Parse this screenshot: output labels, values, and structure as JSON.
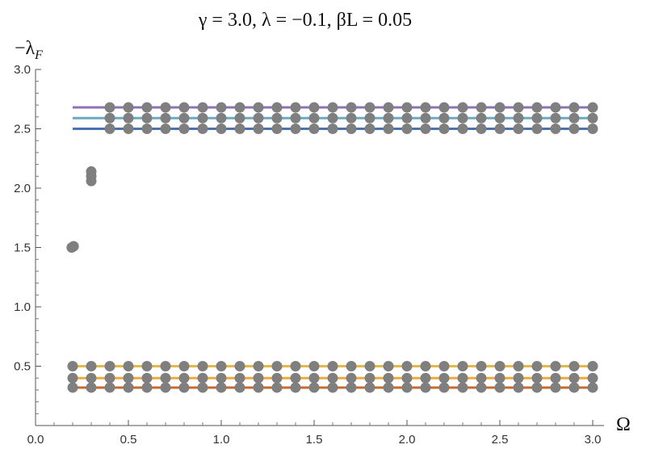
{
  "chart_data": {
    "type": "scatter",
    "title": "γ = 3.0, λ = −0.1, βL = 0.05",
    "xlabel": "Ω",
    "ylabel": "−λ",
    "ylabel_sub": "F",
    "xlim": [
      0,
      3.05
    ],
    "ylim": [
      0,
      3.0
    ],
    "xticks": [
      "0.0",
      "0.5",
      "1.0",
      "1.5",
      "2.0",
      "2.5",
      "3.0"
    ],
    "yticks": [
      "0.5",
      "1.0",
      "1.5",
      "2.0",
      "2.5",
      "3.0"
    ],
    "grid": false,
    "lines": [
      {
        "y": 2.68,
        "x_range": [
          0.2,
          3.0
        ],
        "color": "#8e72b5"
      },
      {
        "y": 2.59,
        "x_range": [
          0.2,
          3.0
        ],
        "color": "#6aa8c4"
      },
      {
        "y": 2.5,
        "x_range": [
          0.2,
          3.0
        ],
        "color": "#4a72b0"
      },
      {
        "y": 0.5,
        "x_range": [
          0.2,
          3.0
        ],
        "color": "#e6b84a"
      },
      {
        "y": 0.4,
        "x_range": [
          0.2,
          3.0
        ],
        "color": "#f0a838"
      },
      {
        "y": 0.32,
        "x_range": [
          0.2,
          3.0
        ],
        "color": "#c96a2c"
      }
    ],
    "point_color": "#7f7f7f",
    "band_points": {
      "x_start": 0.4,
      "x_end": 3.0,
      "x_step": 0.1,
      "upper_y": [
        2.5,
        2.59,
        2.68
      ],
      "lower_y": [
        0.32,
        0.4,
        0.5
      ]
    },
    "extra_points": [
      {
        "x": 0.2,
        "y": 0.5
      },
      {
        "x": 0.2,
        "y": 0.4
      },
      {
        "x": 0.2,
        "y": 0.32
      },
      {
        "x": 0.3,
        "y": 0.5
      },
      {
        "x": 0.3,
        "y": 0.4
      },
      {
        "x": 0.3,
        "y": 0.32
      },
      {
        "x": 0.195,
        "y": 1.5
      },
      {
        "x": 0.205,
        "y": 1.51
      },
      {
        "x": 0.3,
        "y": 2.06
      },
      {
        "x": 0.3,
        "y": 2.1
      },
      {
        "x": 0.3,
        "y": 2.14
      }
    ]
  }
}
